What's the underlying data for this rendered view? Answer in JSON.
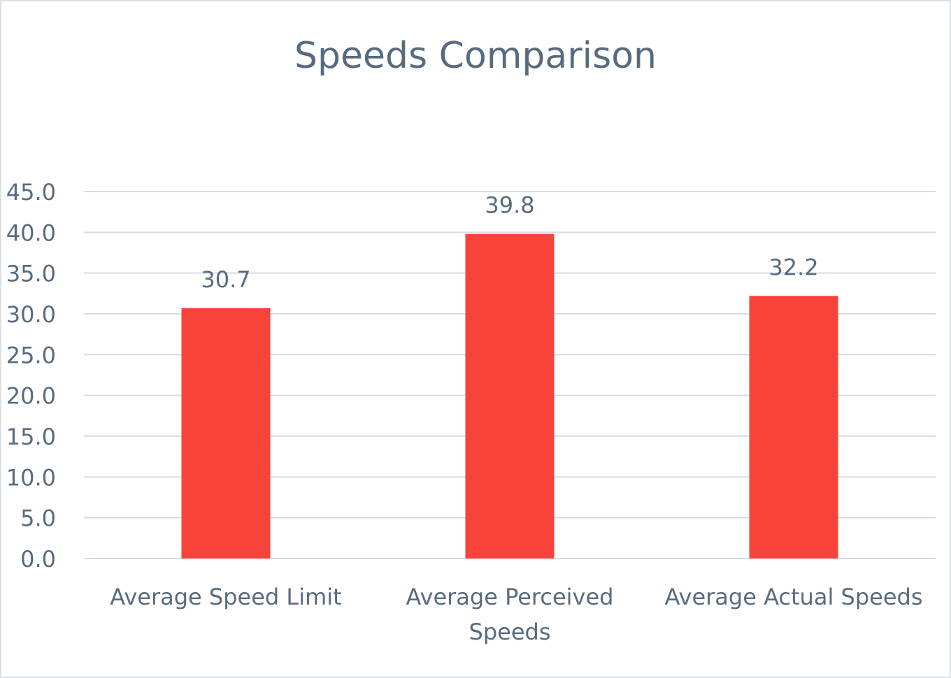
{
  "chart_data": {
    "type": "bar",
    "title": "Speeds Comparison",
    "categories": [
      [
        "Average Speed Limit"
      ],
      [
        "Average Perceived",
        "Speeds"
      ],
      [
        "Average Actual Speeds"
      ]
    ],
    "values": [
      30.7,
      39.8,
      32.2
    ],
    "data_labels": [
      "30.7",
      "39.8",
      "32.2"
    ],
    "xlabel": "",
    "ylabel": "",
    "ylim": [
      0,
      45
    ],
    "yticks": [
      "0.0",
      "5.0",
      "10.0",
      "15.0",
      "20.0",
      "25.0",
      "30.0",
      "35.0",
      "40.0",
      "45.0"
    ],
    "grid": true,
    "legend": "none",
    "colors": {
      "bar": "#f8433a",
      "grid": "#d6dce4",
      "text": "#586b7e"
    }
  }
}
